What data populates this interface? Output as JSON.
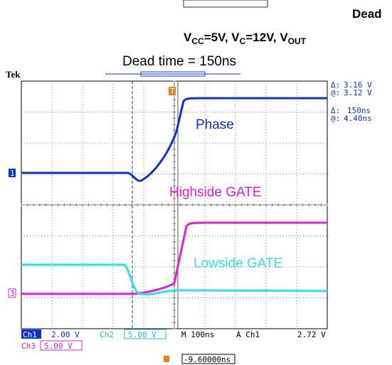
{
  "header": {
    "title": "Dead",
    "conditions": [
      {
        "base": "V",
        "sub": "CC",
        "rest": "=5V, "
      },
      {
        "base": "V",
        "sub": "C",
        "rest": "=12V, "
      },
      {
        "base": "V",
        "sub": "OUT",
        "rest": ""
      }
    ],
    "subtitle": "Dead time = 150ns"
  },
  "scope": {
    "brand": "Tek",
    "cursor_v": [
      {
        "sym": "Δ:",
        "val": "3.16 V"
      },
      {
        "sym": "@:",
        "val": "3.12 V"
      }
    ],
    "cursor_t": [
      {
        "sym": "Δ:",
        "val": "150ns"
      },
      {
        "sym": "@:",
        "val": "4.40ns"
      }
    ],
    "traces": {
      "phase": "Phase",
      "highside": "Highside GATE",
      "lowside": "Lowside GATE"
    },
    "markers": {
      "ch1": "1",
      "ch3": "3",
      "trigger": "T"
    },
    "status": {
      "ch1": "Ch1",
      "ch1_scale": "2.00 V",
      "ch2": "Ch2",
      "ch2_scale": "5.00 V",
      "time": "M 100ns",
      "trig": "A  Ch1",
      "trig_level": "2.72 V",
      "ch3": "Ch3",
      "ch3_scale": "5.00 V",
      "offset": "-9.60000ns"
    }
  }
}
